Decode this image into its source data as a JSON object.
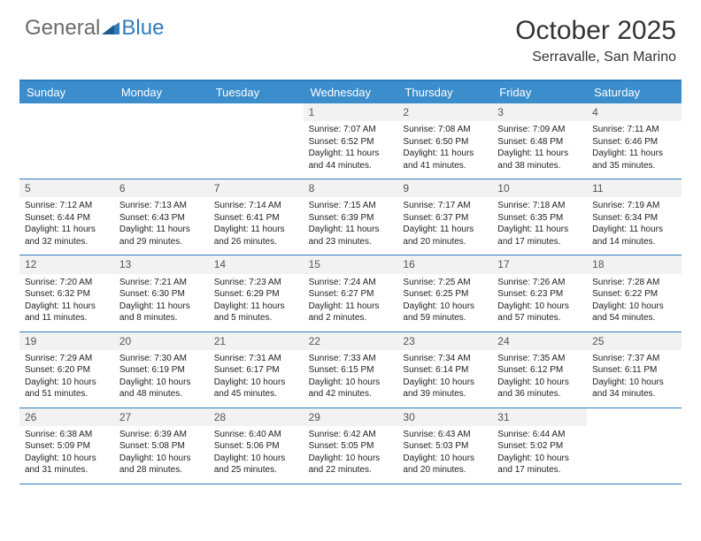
{
  "logo": {
    "text_general": "General",
    "text_blue": "Blue"
  },
  "header": {
    "month": "October 2025",
    "location": "Serravalle, San Marino"
  },
  "colors": {
    "accent": "#3c8dcc",
    "border": "#2f7bbf",
    "num_bg": "#f2f2f2",
    "text": "#333333"
  },
  "dayNames": [
    "Sunday",
    "Monday",
    "Tuesday",
    "Wednesday",
    "Thursday",
    "Friday",
    "Saturday"
  ],
  "weeks": [
    [
      {
        "n": "",
        "sr": "",
        "ss": "",
        "dl": ""
      },
      {
        "n": "",
        "sr": "",
        "ss": "",
        "dl": ""
      },
      {
        "n": "",
        "sr": "",
        "ss": "",
        "dl": ""
      },
      {
        "n": "1",
        "sr": "Sunrise: 7:07 AM",
        "ss": "Sunset: 6:52 PM",
        "dl": "Daylight: 11 hours and 44 minutes."
      },
      {
        "n": "2",
        "sr": "Sunrise: 7:08 AM",
        "ss": "Sunset: 6:50 PM",
        "dl": "Daylight: 11 hours and 41 minutes."
      },
      {
        "n": "3",
        "sr": "Sunrise: 7:09 AM",
        "ss": "Sunset: 6:48 PM",
        "dl": "Daylight: 11 hours and 38 minutes."
      },
      {
        "n": "4",
        "sr": "Sunrise: 7:11 AM",
        "ss": "Sunset: 6:46 PM",
        "dl": "Daylight: 11 hours and 35 minutes."
      }
    ],
    [
      {
        "n": "5",
        "sr": "Sunrise: 7:12 AM",
        "ss": "Sunset: 6:44 PM",
        "dl": "Daylight: 11 hours and 32 minutes."
      },
      {
        "n": "6",
        "sr": "Sunrise: 7:13 AM",
        "ss": "Sunset: 6:43 PM",
        "dl": "Daylight: 11 hours and 29 minutes."
      },
      {
        "n": "7",
        "sr": "Sunrise: 7:14 AM",
        "ss": "Sunset: 6:41 PM",
        "dl": "Daylight: 11 hours and 26 minutes."
      },
      {
        "n": "8",
        "sr": "Sunrise: 7:15 AM",
        "ss": "Sunset: 6:39 PM",
        "dl": "Daylight: 11 hours and 23 minutes."
      },
      {
        "n": "9",
        "sr": "Sunrise: 7:17 AM",
        "ss": "Sunset: 6:37 PM",
        "dl": "Daylight: 11 hours and 20 minutes."
      },
      {
        "n": "10",
        "sr": "Sunrise: 7:18 AM",
        "ss": "Sunset: 6:35 PM",
        "dl": "Daylight: 11 hours and 17 minutes."
      },
      {
        "n": "11",
        "sr": "Sunrise: 7:19 AM",
        "ss": "Sunset: 6:34 PM",
        "dl": "Daylight: 11 hours and 14 minutes."
      }
    ],
    [
      {
        "n": "12",
        "sr": "Sunrise: 7:20 AM",
        "ss": "Sunset: 6:32 PM",
        "dl": "Daylight: 11 hours and 11 minutes."
      },
      {
        "n": "13",
        "sr": "Sunrise: 7:21 AM",
        "ss": "Sunset: 6:30 PM",
        "dl": "Daylight: 11 hours and 8 minutes."
      },
      {
        "n": "14",
        "sr": "Sunrise: 7:23 AM",
        "ss": "Sunset: 6:29 PM",
        "dl": "Daylight: 11 hours and 5 minutes."
      },
      {
        "n": "15",
        "sr": "Sunrise: 7:24 AM",
        "ss": "Sunset: 6:27 PM",
        "dl": "Daylight: 11 hours and 2 minutes."
      },
      {
        "n": "16",
        "sr": "Sunrise: 7:25 AM",
        "ss": "Sunset: 6:25 PM",
        "dl": "Daylight: 10 hours and 59 minutes."
      },
      {
        "n": "17",
        "sr": "Sunrise: 7:26 AM",
        "ss": "Sunset: 6:23 PM",
        "dl": "Daylight: 10 hours and 57 minutes."
      },
      {
        "n": "18",
        "sr": "Sunrise: 7:28 AM",
        "ss": "Sunset: 6:22 PM",
        "dl": "Daylight: 10 hours and 54 minutes."
      }
    ],
    [
      {
        "n": "19",
        "sr": "Sunrise: 7:29 AM",
        "ss": "Sunset: 6:20 PM",
        "dl": "Daylight: 10 hours and 51 minutes."
      },
      {
        "n": "20",
        "sr": "Sunrise: 7:30 AM",
        "ss": "Sunset: 6:19 PM",
        "dl": "Daylight: 10 hours and 48 minutes."
      },
      {
        "n": "21",
        "sr": "Sunrise: 7:31 AM",
        "ss": "Sunset: 6:17 PM",
        "dl": "Daylight: 10 hours and 45 minutes."
      },
      {
        "n": "22",
        "sr": "Sunrise: 7:33 AM",
        "ss": "Sunset: 6:15 PM",
        "dl": "Daylight: 10 hours and 42 minutes."
      },
      {
        "n": "23",
        "sr": "Sunrise: 7:34 AM",
        "ss": "Sunset: 6:14 PM",
        "dl": "Daylight: 10 hours and 39 minutes."
      },
      {
        "n": "24",
        "sr": "Sunrise: 7:35 AM",
        "ss": "Sunset: 6:12 PM",
        "dl": "Daylight: 10 hours and 36 minutes."
      },
      {
        "n": "25",
        "sr": "Sunrise: 7:37 AM",
        "ss": "Sunset: 6:11 PM",
        "dl": "Daylight: 10 hours and 34 minutes."
      }
    ],
    [
      {
        "n": "26",
        "sr": "Sunrise: 6:38 AM",
        "ss": "Sunset: 5:09 PM",
        "dl": "Daylight: 10 hours and 31 minutes."
      },
      {
        "n": "27",
        "sr": "Sunrise: 6:39 AM",
        "ss": "Sunset: 5:08 PM",
        "dl": "Daylight: 10 hours and 28 minutes."
      },
      {
        "n": "28",
        "sr": "Sunrise: 6:40 AM",
        "ss": "Sunset: 5:06 PM",
        "dl": "Daylight: 10 hours and 25 minutes."
      },
      {
        "n": "29",
        "sr": "Sunrise: 6:42 AM",
        "ss": "Sunset: 5:05 PM",
        "dl": "Daylight: 10 hours and 22 minutes."
      },
      {
        "n": "30",
        "sr": "Sunrise: 6:43 AM",
        "ss": "Sunset: 5:03 PM",
        "dl": "Daylight: 10 hours and 20 minutes."
      },
      {
        "n": "31",
        "sr": "Sunrise: 6:44 AM",
        "ss": "Sunset: 5:02 PM",
        "dl": "Daylight: 10 hours and 17 minutes."
      },
      {
        "n": "",
        "sr": "",
        "ss": "",
        "dl": ""
      }
    ]
  ]
}
